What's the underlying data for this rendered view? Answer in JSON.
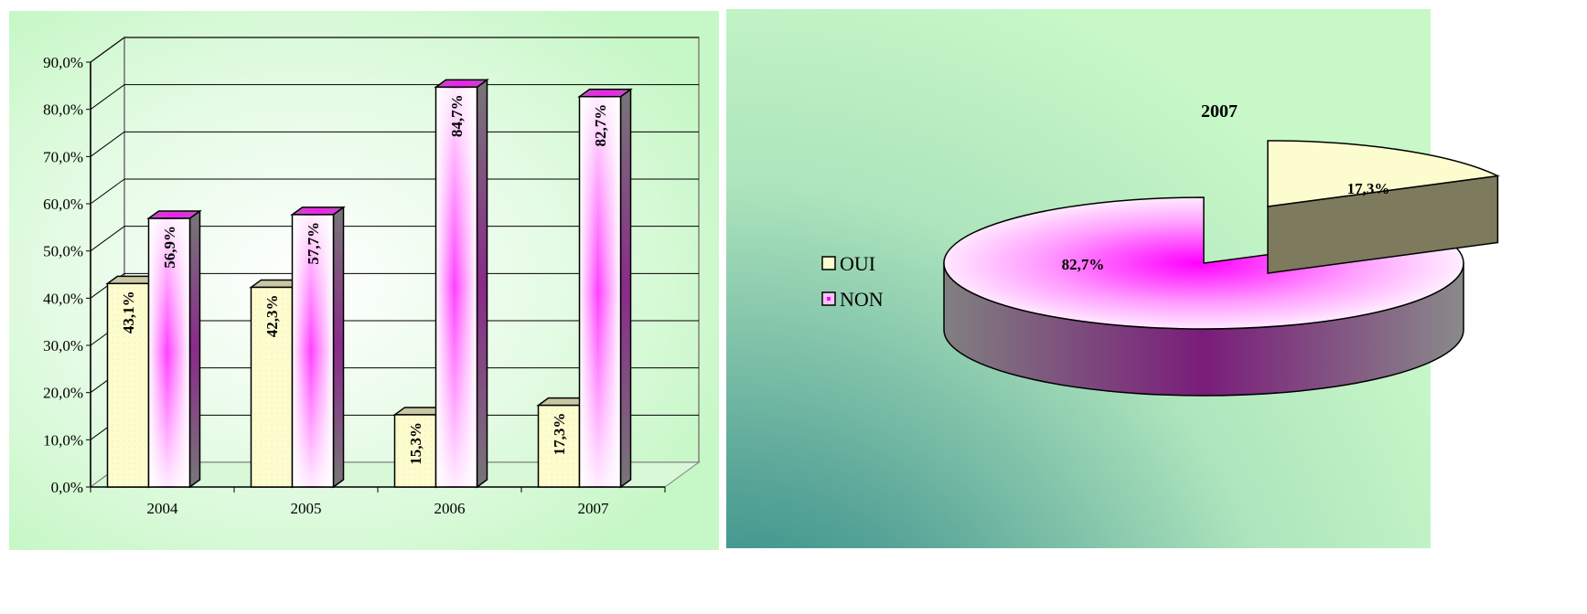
{
  "colors": {
    "oui": "#fdfccf",
    "non": "#ff00ff",
    "left_background": "#c8f8c8",
    "right_background_top": "#c8f8c8",
    "right_background_bottom": "#1a7d7d"
  },
  "chart_data": [
    {
      "type": "bar",
      "title": "",
      "categories": [
        "2004",
        "2005",
        "2006",
        "2007"
      ],
      "series": [
        {
          "name": "OUI",
          "values": [
            43.1,
            42.3,
            15.3,
            17.3
          ],
          "labels": [
            "43,1%",
            "42,3%",
            "15,3%",
            "17,3%"
          ]
        },
        {
          "name": "NON",
          "values": [
            56.9,
            57.7,
            84.7,
            82.7
          ],
          "labels": [
            "56,9%",
            "57,7%",
            "84,7%",
            "82,7%"
          ]
        }
      ],
      "ylim": [
        0,
        90
      ],
      "yticks": [
        "0,0%",
        "10,0%",
        "20,0%",
        "30,0%",
        "40,0%",
        "50,0%",
        "60,0%",
        "70,0%",
        "80,0%",
        "90,0%"
      ],
      "xlabel": "",
      "ylabel": "",
      "grid": true,
      "legend": "none"
    },
    {
      "type": "pie",
      "title": "2007",
      "labels": [
        "OUI",
        "NON"
      ],
      "values": [
        17.3,
        82.7
      ],
      "value_labels": [
        "17,3%",
        "82,7%"
      ],
      "legend": "left",
      "exploded": "OUI"
    }
  ]
}
